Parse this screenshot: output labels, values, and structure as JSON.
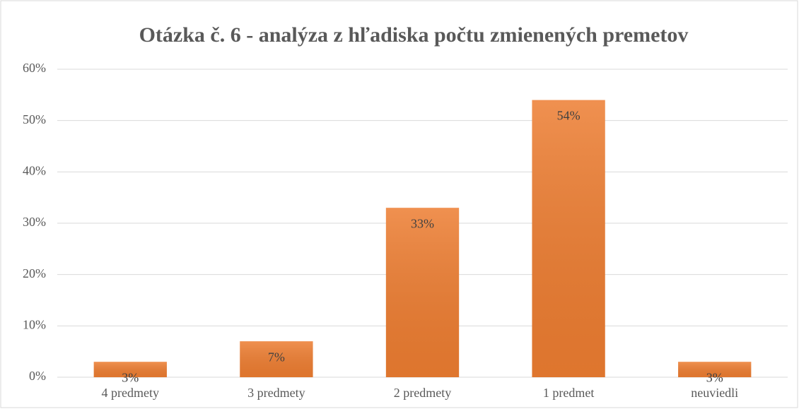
{
  "chart_data": {
    "type": "bar",
    "title": "Otázka č. 6 - analýza z hľadiska počtu zmienených premetov",
    "categories": [
      "4 predmety",
      "3 predmety",
      "2 predmety",
      "1 predmet",
      "neuviedli"
    ],
    "values": [
      3,
      7,
      33,
      54,
      3
    ],
    "value_labels": [
      "3%",
      "7%",
      "33%",
      "54%",
      "3%"
    ],
    "color": "#ed7d31",
    "ylim": [
      0,
      60
    ],
    "yticks": [
      {
        "value": 0,
        "label": "0%"
      },
      {
        "value": 10,
        "label": "10%"
      },
      {
        "value": 20,
        "label": "20%"
      },
      {
        "value": 30,
        "label": "30%"
      },
      {
        "value": 40,
        "label": "40%"
      },
      {
        "value": 50,
        "label": "50%"
      },
      {
        "value": 60,
        "label": "60%"
      }
    ],
    "grid": true
  }
}
